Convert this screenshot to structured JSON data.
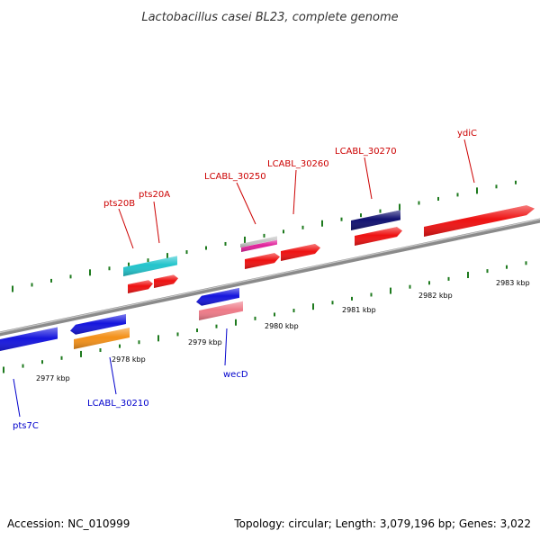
{
  "title": "Lactobacillus casei BL23, complete genome",
  "footer": {
    "accession": "Accession: NC_010999",
    "topology": "Topology: circular; Length: 3,079,196 bp; Genes: 3,022"
  },
  "kbp_labels": [
    "2977 kbp",
    "2978 kbp",
    "2979 kbp",
    "2980 kbp",
    "2981 kbp",
    "2982 kbp",
    "2983 kbp"
  ],
  "colors": {
    "backbone": "#8a8a8a",
    "tick": "#1e7a1e",
    "label_red": "#cc0000",
    "label_blue": "#0000cc",
    "red": "#ee1111",
    "blue": "#1515dd",
    "navy": "#101070",
    "cyan": "#22c4cc",
    "orange": "#f39018",
    "pink": "#ee7a88",
    "magenta": "#e0209a",
    "grey": "#c4c4c4"
  },
  "gene_labels": [
    {
      "text": "pts20B",
      "color": "red"
    },
    {
      "text": "pts20A",
      "color": "red"
    },
    {
      "text": "LCABL_30250",
      "color": "red"
    },
    {
      "text": "LCABL_30260",
      "color": "red"
    },
    {
      "text": "LCABL_30270",
      "color": "red"
    },
    {
      "text": "ydiC",
      "color": "red"
    },
    {
      "text": "wecD",
      "color": "blue"
    },
    {
      "text": "LCABL_30210",
      "color": "blue"
    },
    {
      "text": "pts7C",
      "color": "blue"
    }
  ]
}
